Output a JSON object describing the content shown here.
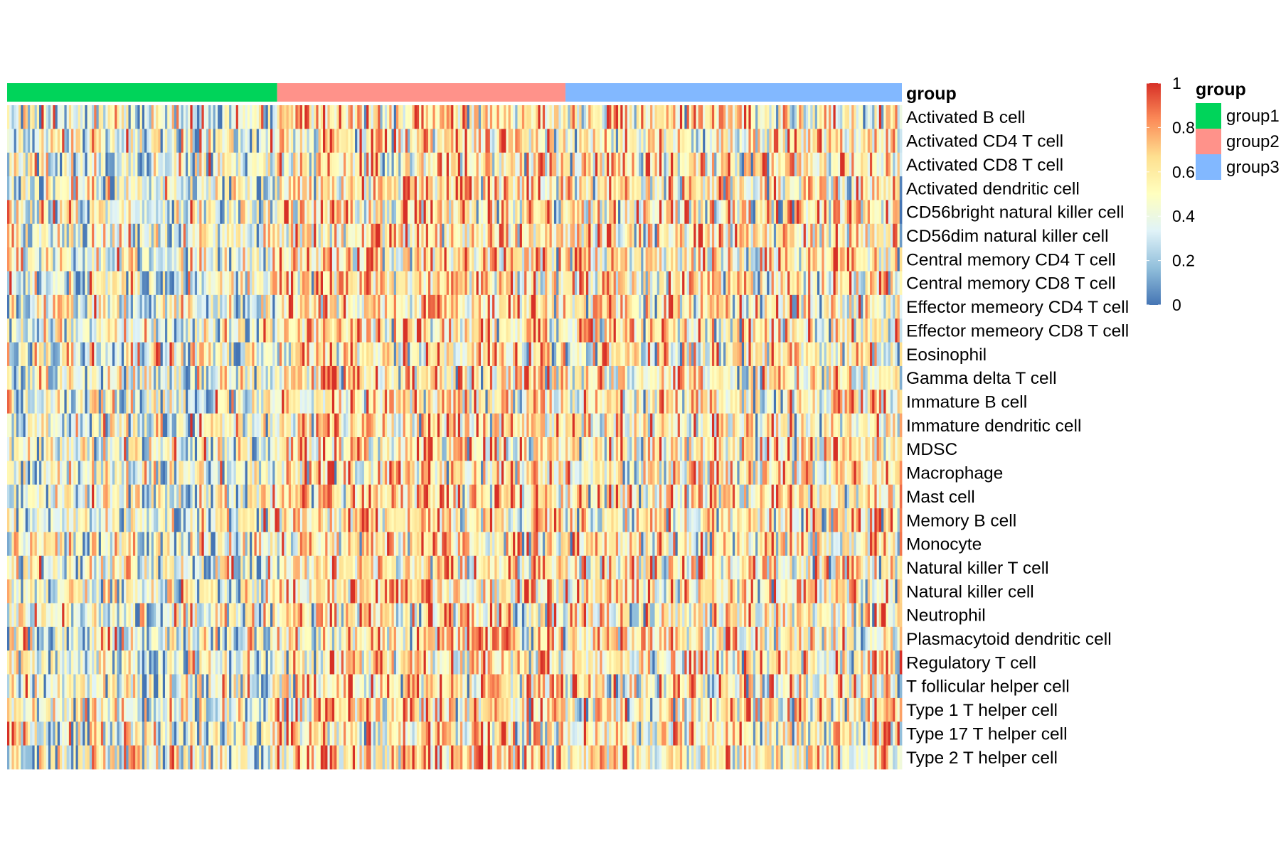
{
  "chart_data": {
    "type": "heatmap",
    "title": "",
    "value_unit": "",
    "annotation": {
      "label": "group",
      "groups": [
        {
          "name": "group1",
          "color": "#00D45A",
          "columns": 118
        },
        {
          "name": "group2",
          "color": "#FF928A",
          "columns": 126
        },
        {
          "name": "group3",
          "color": "#82B8FF",
          "columns": 147
        }
      ]
    },
    "rows": [
      "Activated B cell",
      "Activated CD4 T cell",
      "Activated CD8 T cell",
      "Activated dendritic cell",
      "CD56bright natural killer cell",
      "CD56dim natural killer cell",
      "Central memory CD4 T cell",
      "Central memory CD8 T cell",
      "Effector memeory CD4 T cell",
      "Effector memeory CD8 T cell",
      "Eosinophil",
      "Gamma delta T cell",
      "Immature  B cell",
      "Immature dendritic cell",
      "MDSC",
      "Macrophage",
      "Mast cell",
      "Memory B cell",
      "Monocyte",
      "Natural killer T cell",
      "Natural killer cell",
      "Neutrophil",
      "Plasmacytoid dendritic cell",
      "Regulatory T cell",
      "T follicular helper cell",
      "Type 1 T helper cell",
      "Type 17 T helper cell",
      "Type 2 T helper cell"
    ],
    "group_mean_level": {
      "group1": 0.42,
      "group2": 0.6,
      "group3": 0.56
    },
    "color_scale": {
      "min": 0,
      "max": 1,
      "ticks": [
        "0",
        "0.2",
        "0.4",
        "0.6",
        "0.8",
        "1"
      ],
      "stops": [
        "#4575B4",
        "#91BFDB",
        "#E0F3F8",
        "#FFFFBF",
        "#FEE090",
        "#FC8D59",
        "#D73027"
      ]
    },
    "legend": {
      "title": "group",
      "position": "right"
    }
  }
}
